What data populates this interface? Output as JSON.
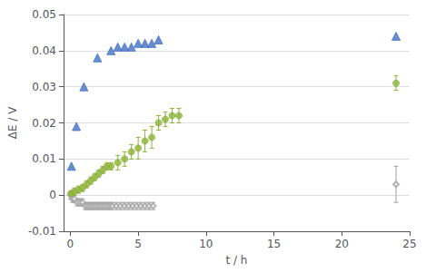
{
  "chart_data": {
    "type": "scatter",
    "title": "",
    "xlabel": "t / h",
    "ylabel": "ΔE / V",
    "xlim": [
      -0.5,
      25
    ],
    "ylim": [
      -0.01,
      0.05
    ],
    "xticks": [
      0,
      5,
      10,
      15,
      20,
      25
    ],
    "yticks": [
      -0.01,
      0,
      0.01,
      0.02,
      0.03,
      0.04,
      0.05
    ],
    "grid": true,
    "series": [
      {
        "marker": "open_diamond",
        "color": "#a0a0a0",
        "x": [
          0.02,
          0.15,
          0.3,
          0.5,
          0.7,
          0.9,
          1.1,
          1.3,
          1.5,
          1.7,
          1.9,
          2.1,
          2.3,
          2.5,
          2.7,
          2.9,
          3.1,
          3.4,
          3.7,
          4.0,
          4.3,
          4.6,
          4.9,
          5.2,
          5.5,
          5.8,
          6.1,
          24.0
        ],
        "values": [
          0.0,
          -0.001,
          -0.001,
          -0.002,
          -0.002,
          -0.002,
          -0.003,
          -0.003,
          -0.003,
          -0.003,
          -0.003,
          -0.003,
          -0.003,
          -0.003,
          -0.003,
          -0.003,
          -0.003,
          -0.003,
          -0.003,
          -0.003,
          -0.003,
          -0.003,
          -0.003,
          -0.003,
          -0.003,
          -0.003,
          -0.003,
          0.003
        ],
        "yerr": [
          0.001,
          0.001,
          0.001,
          0.001,
          0.001,
          0.001,
          0.001,
          0.001,
          0.001,
          0.001,
          0.001,
          0.001,
          0.001,
          0.001,
          0.001,
          0.001,
          0.001,
          0.001,
          0.001,
          0.001,
          0.001,
          0.001,
          0.001,
          0.001,
          0.001,
          0.001,
          0.001,
          0.005
        ]
      },
      {
        "marker": "circle",
        "color": "#8db33a",
        "x": [
          0.05,
          0.3,
          0.6,
          0.9,
          1.2,
          1.5,
          1.8,
          2.1,
          2.4,
          2.7,
          3.0,
          3.5,
          4.0,
          4.5,
          5.0,
          5.5,
          6.0,
          6.5,
          7.0,
          7.5,
          8.0,
          24.0
        ],
        "values": [
          0.0005,
          0.001,
          0.0015,
          0.002,
          0.003,
          0.004,
          0.005,
          0.006,
          0.007,
          0.008,
          0.008,
          0.009,
          0.01,
          0.012,
          0.013,
          0.015,
          0.016,
          0.02,
          0.021,
          0.022,
          0.022,
          0.031
        ],
        "yerr": [
          0.0005,
          0.001,
          0.001,
          0.001,
          0.001,
          0.001,
          0.001,
          0.001,
          0.001,
          0.001,
          0.001,
          0.002,
          0.002,
          0.002,
          0.003,
          0.003,
          0.003,
          0.002,
          0.002,
          0.002,
          0.002,
          0.002
        ]
      },
      {
        "marker": "triangle",
        "color": "#4472C4",
        "x": [
          0.08,
          0.45,
          1.0,
          2.0,
          3.0,
          3.5,
          4.0,
          4.5,
          5.0,
          5.5,
          6.0,
          6.5,
          24.0
        ],
        "values": [
          0.008,
          0.019,
          0.03,
          0.038,
          0.04,
          0.041,
          0.041,
          0.041,
          0.042,
          0.042,
          0.042,
          0.043,
          0.044
        ]
      }
    ]
  }
}
